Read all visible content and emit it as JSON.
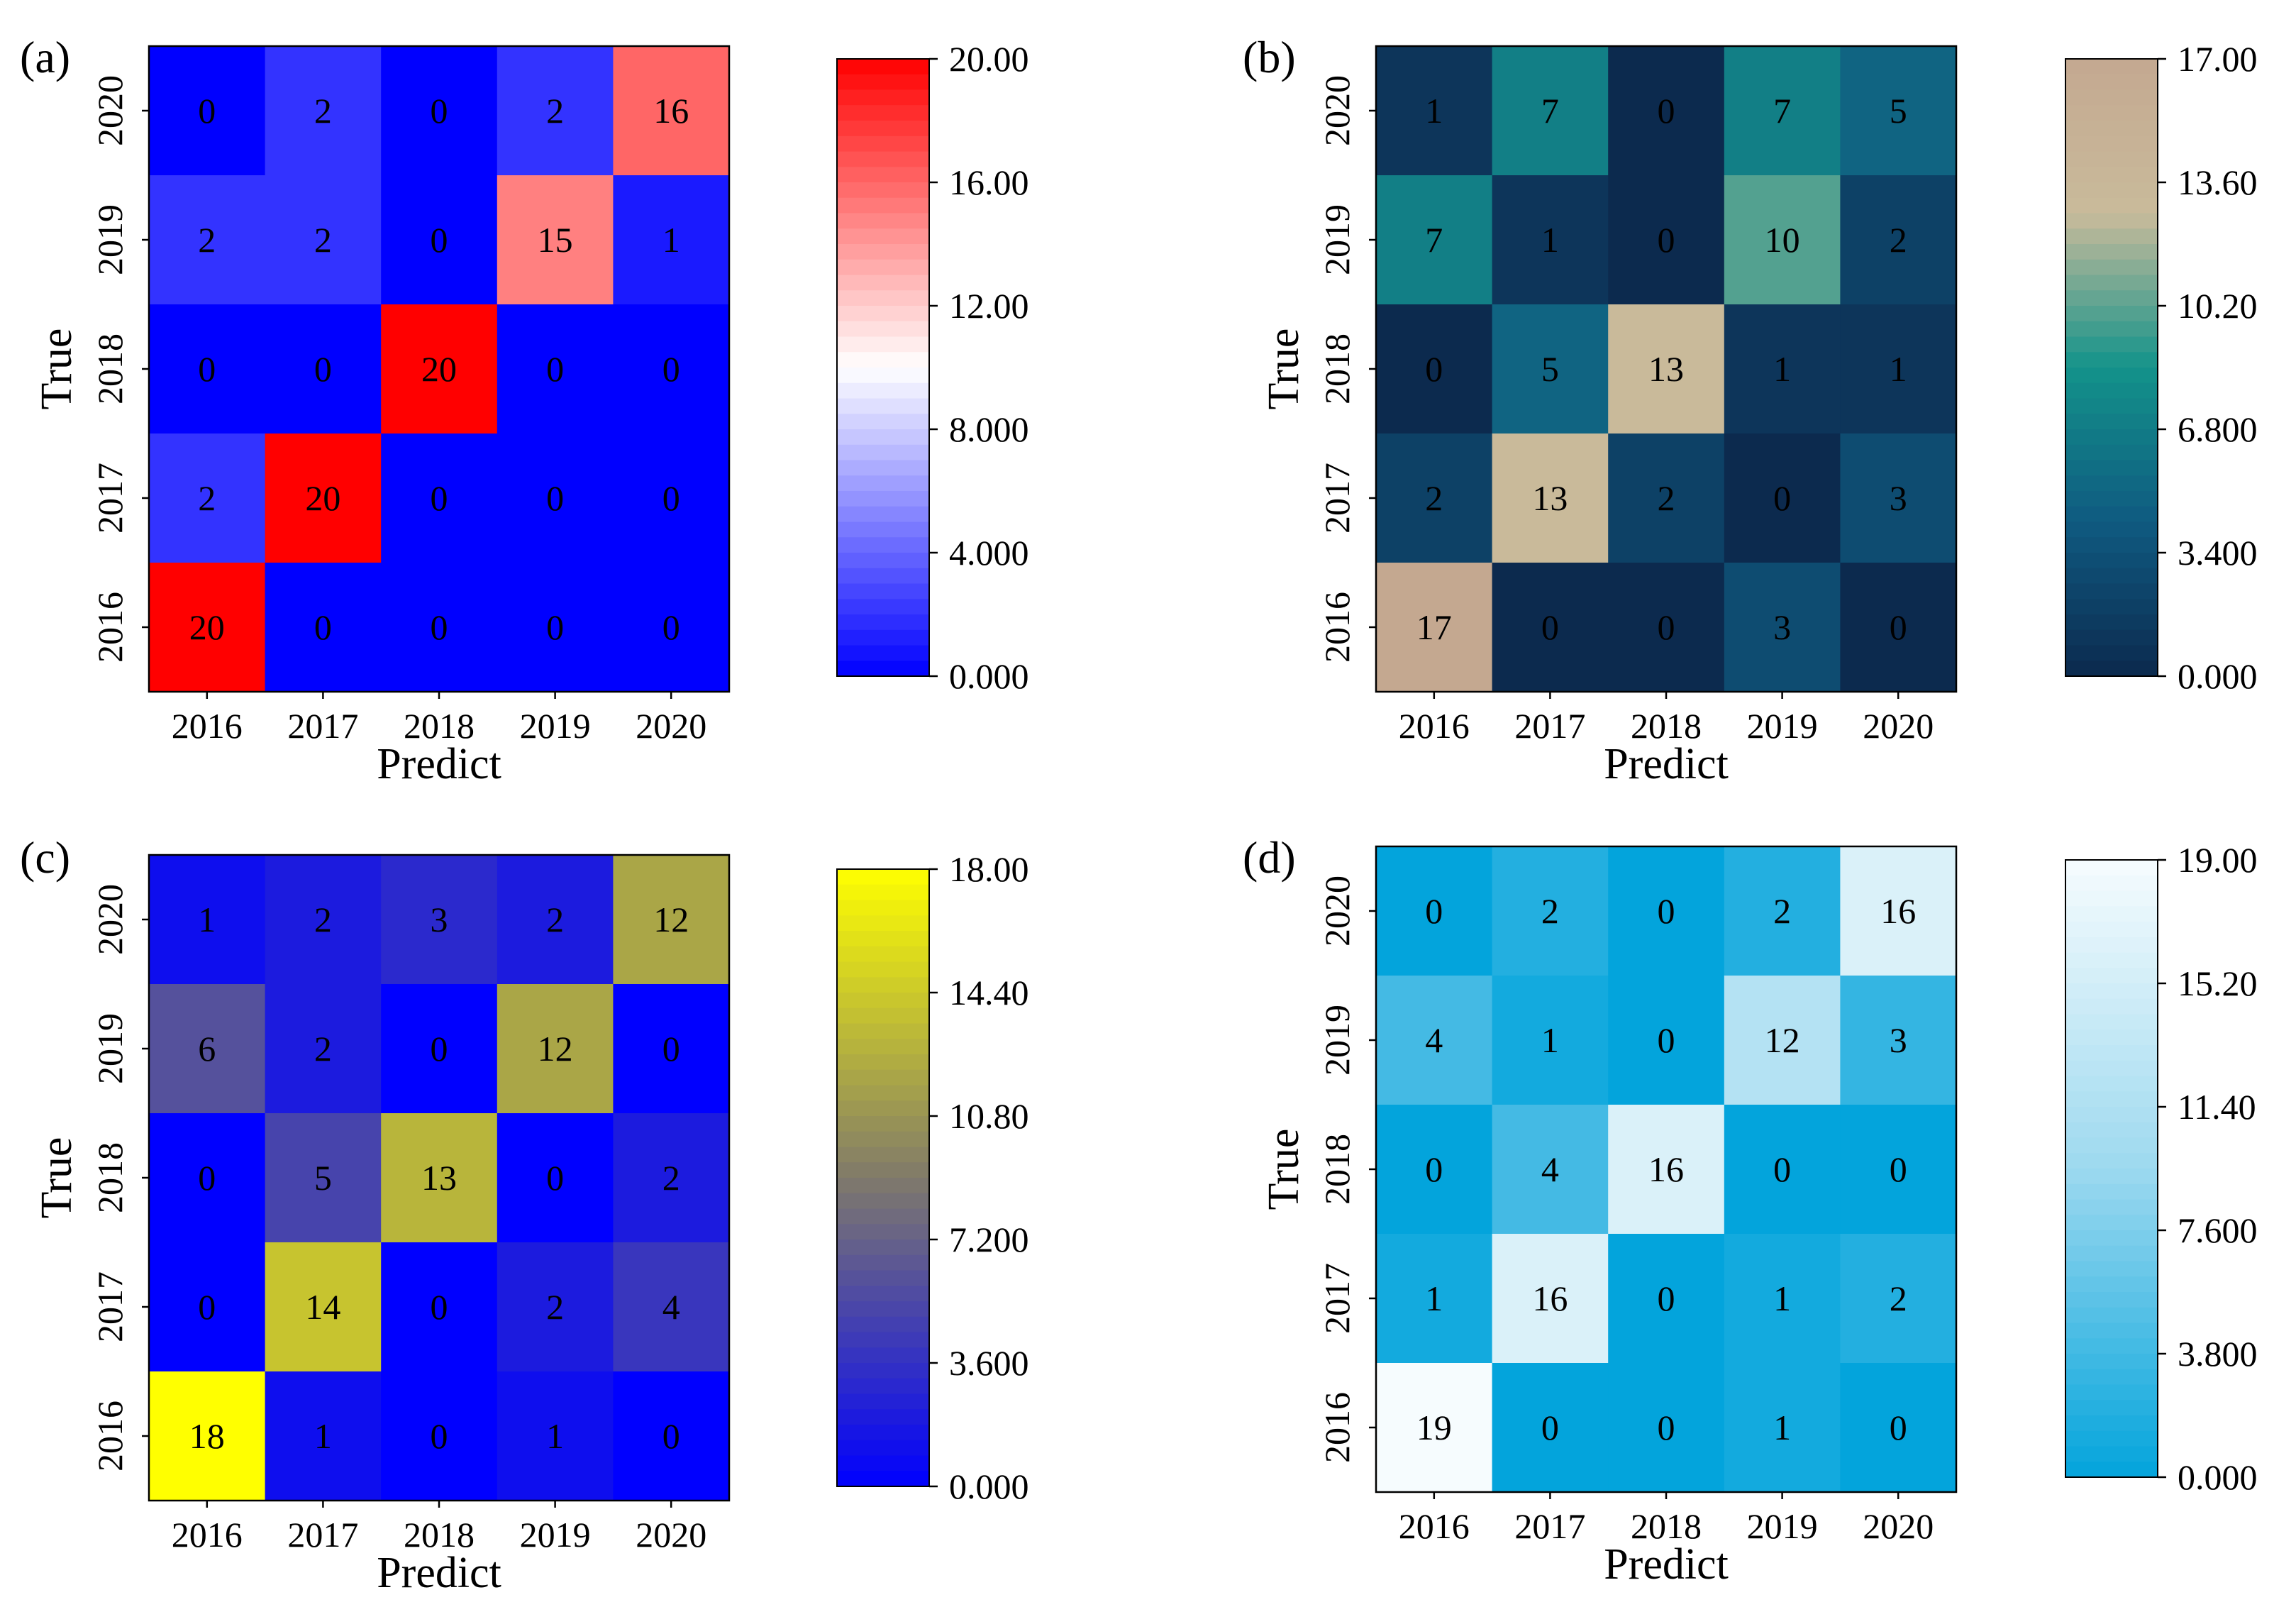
{
  "chart_data": [
    {
      "type": "heatmap",
      "panel_label": "(a)",
      "xlabel": "Predict",
      "ylabel": "True",
      "x_categories": [
        "2016",
        "2017",
        "2018",
        "2019",
        "2020"
      ],
      "y_categories": [
        "2016",
        "2017",
        "2018",
        "2019",
        "2020"
      ],
      "rows_top_to_bottom": [
        "2020",
        "2019",
        "2018",
        "2017",
        "2016"
      ],
      "values": [
        [
          0,
          2,
          0,
          2,
          16
        ],
        [
          2,
          2,
          0,
          15,
          1
        ],
        [
          0,
          0,
          20,
          0,
          0
        ],
        [
          2,
          20,
          0,
          0,
          0
        ],
        [
          20,
          0,
          0,
          0,
          0
        ]
      ],
      "vmin": 0,
      "vmax": 20,
      "colorbar_ticks": [
        "20.00",
        "16.00",
        "12.00",
        "8.000",
        "4.000",
        "0.000"
      ],
      "colormap": [
        "#0000ff",
        "#ffffff",
        "#ff0000"
      ]
    },
    {
      "type": "heatmap",
      "panel_label": "(b)",
      "xlabel": "Predict",
      "ylabel": "True",
      "x_categories": [
        "2016",
        "2017",
        "2018",
        "2019",
        "2020"
      ],
      "y_categories": [
        "2016",
        "2017",
        "2018",
        "2019",
        "2020"
      ],
      "rows_top_to_bottom": [
        "2020",
        "2019",
        "2018",
        "2017",
        "2016"
      ],
      "values": [
        [
          1,
          7,
          0,
          7,
          5
        ],
        [
          7,
          1,
          0,
          10,
          2
        ],
        [
          0,
          5,
          13,
          1,
          1
        ],
        [
          2,
          13,
          2,
          0,
          3
        ],
        [
          17,
          0,
          0,
          3,
          0
        ]
      ],
      "vmin": 0,
      "vmax": 17,
      "colorbar_ticks": [
        "17.00",
        "13.60",
        "10.20",
        "6.800",
        "3.400",
        "0.000"
      ],
      "colormap": [
        "#0c2a4e",
        "#0f5a80",
        "#13938a",
        "#c9bb9b",
        "#c4a890"
      ]
    },
    {
      "type": "heatmap",
      "panel_label": "(c)",
      "xlabel": "Predict",
      "ylabel": "True",
      "x_categories": [
        "2016",
        "2017",
        "2018",
        "2019",
        "2020"
      ],
      "y_categories": [
        "2016",
        "2017",
        "2018",
        "2019",
        "2020"
      ],
      "rows_top_to_bottom": [
        "2020",
        "2019",
        "2018",
        "2017",
        "2016"
      ],
      "values": [
        [
          1,
          2,
          3,
          2,
          12
        ],
        [
          6,
          2,
          0,
          12,
          0
        ],
        [
          0,
          5,
          13,
          0,
          2
        ],
        [
          0,
          14,
          0,
          2,
          4
        ],
        [
          18,
          1,
          0,
          1,
          0
        ]
      ],
      "vmin": 0,
      "vmax": 18,
      "colorbar_ticks": [
        "18.00",
        "14.40",
        "10.80",
        "7.200",
        "3.600",
        "0.000"
      ],
      "colormap": [
        "#0000ff",
        "#807a6a",
        "#ffff00"
      ]
    },
    {
      "type": "heatmap",
      "panel_label": "(d)",
      "xlabel": "Predict",
      "ylabel": "True",
      "x_categories": [
        "2016",
        "2017",
        "2018",
        "2019",
        "2020"
      ],
      "y_categories": [
        "2016",
        "2017",
        "2018",
        "2019",
        "2020"
      ],
      "rows_top_to_bottom": [
        "2020",
        "2019",
        "2018",
        "2017",
        "2016"
      ],
      "values": [
        [
          0,
          2,
          0,
          2,
          16
        ],
        [
          4,
          1,
          0,
          12,
          3
        ],
        [
          0,
          4,
          16,
          0,
          0
        ],
        [
          1,
          16,
          0,
          1,
          2
        ],
        [
          19,
          0,
          0,
          1,
          0
        ]
      ],
      "vmin": 0,
      "vmax": 19,
      "colorbar_ticks": [
        "19.00",
        "15.20",
        "11.40",
        "7.600",
        "3.800",
        "0.000"
      ],
      "colormap": [
        "#03a4dc",
        "#9dd9ef",
        "#f6fcfe"
      ]
    }
  ]
}
